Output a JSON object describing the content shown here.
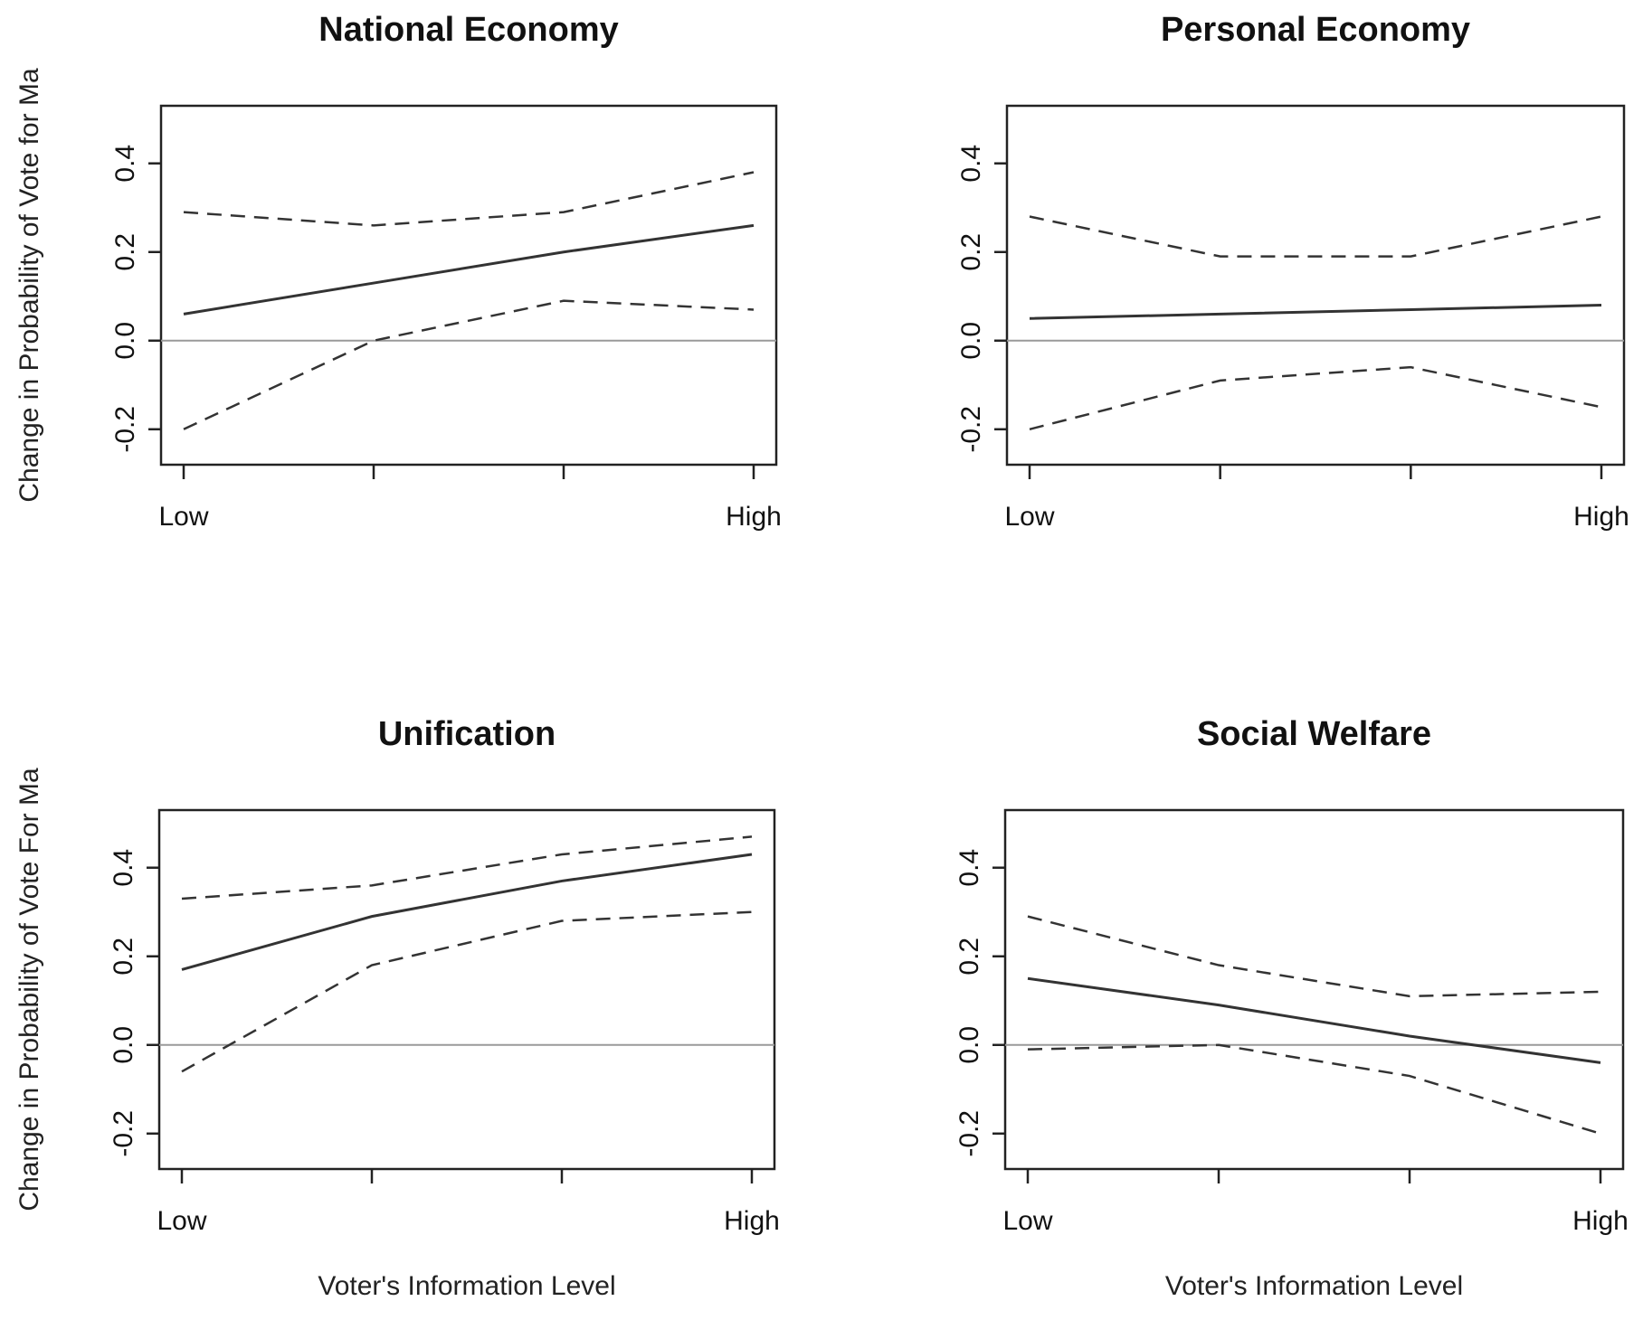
{
  "chart_data": [
    {
      "type": "line",
      "title": "National Economy",
      "ylabel": "Change in Probability of Vote for Ma",
      "xlabel": "",
      "x": [
        1,
        2,
        3,
        4
      ],
      "xtick_labels": [
        "Low",
        "",
        "",
        "High"
      ],
      "ylim": [
        -0.28,
        0.53
      ],
      "yticks": [
        "-0.2",
        "0.0",
        "0.2",
        "0.4"
      ],
      "reference_line": 0,
      "series": [
        {
          "style": "solid",
          "values": [
            0.06,
            0.13,
            0.2,
            0.26
          ]
        },
        {
          "style": "dashed",
          "values": [
            0.29,
            0.26,
            0.29,
            0.38
          ]
        },
        {
          "style": "dashed",
          "values": [
            -0.2,
            0.0,
            0.09,
            0.07
          ]
        }
      ]
    },
    {
      "type": "line",
      "title": "Personal Economy",
      "ylabel": "",
      "xlabel": "",
      "x": [
        1,
        2,
        3,
        4
      ],
      "xtick_labels": [
        "Low",
        "",
        "",
        "High"
      ],
      "ylim": [
        -0.28,
        0.53
      ],
      "yticks": [
        "-0.2",
        "0.0",
        "0.2",
        "0.4"
      ],
      "reference_line": 0,
      "series": [
        {
          "style": "solid",
          "values": [
            0.05,
            0.06,
            0.07,
            0.08
          ]
        },
        {
          "style": "dashed",
          "values": [
            0.28,
            0.19,
            0.19,
            0.28
          ]
        },
        {
          "style": "dashed",
          "values": [
            -0.2,
            -0.09,
            -0.06,
            -0.15
          ]
        }
      ]
    },
    {
      "type": "line",
      "title": "Unification",
      "ylabel": "Change in Probability of Vote For Ma",
      "xlabel": "Voter's Information Level",
      "x": [
        1,
        2,
        3,
        4
      ],
      "xtick_labels": [
        "Low",
        "",
        "",
        "High"
      ],
      "ylim": [
        -0.28,
        0.53
      ],
      "yticks": [
        "-0.2",
        "0.0",
        "0.2",
        "0.4"
      ],
      "reference_line": 0,
      "series": [
        {
          "style": "solid",
          "values": [
            0.17,
            0.29,
            0.37,
            0.43
          ]
        },
        {
          "style": "dashed",
          "values": [
            0.33,
            0.36,
            0.43,
            0.47
          ]
        },
        {
          "style": "dashed",
          "values": [
            -0.06,
            0.18,
            0.28,
            0.3
          ]
        }
      ]
    },
    {
      "type": "line",
      "title": "Social Welfare",
      "ylabel": "",
      "xlabel": "Voter's Information Level",
      "x": [
        1,
        2,
        3,
        4
      ],
      "xtick_labels": [
        "Low",
        "",
        "",
        "High"
      ],
      "ylim": [
        -0.28,
        0.53
      ],
      "yticks": [
        "-0.2",
        "0.0",
        "0.2",
        "0.4"
      ],
      "reference_line": 0,
      "series": [
        {
          "style": "solid",
          "values": [
            0.15,
            0.09,
            0.02,
            -0.04
          ]
        },
        {
          "style": "dashed",
          "values": [
            0.29,
            0.18,
            0.11,
            0.12
          ]
        },
        {
          "style": "dashed",
          "values": [
            -0.01,
            0.0,
            -0.07,
            -0.2
          ]
        }
      ]
    }
  ]
}
